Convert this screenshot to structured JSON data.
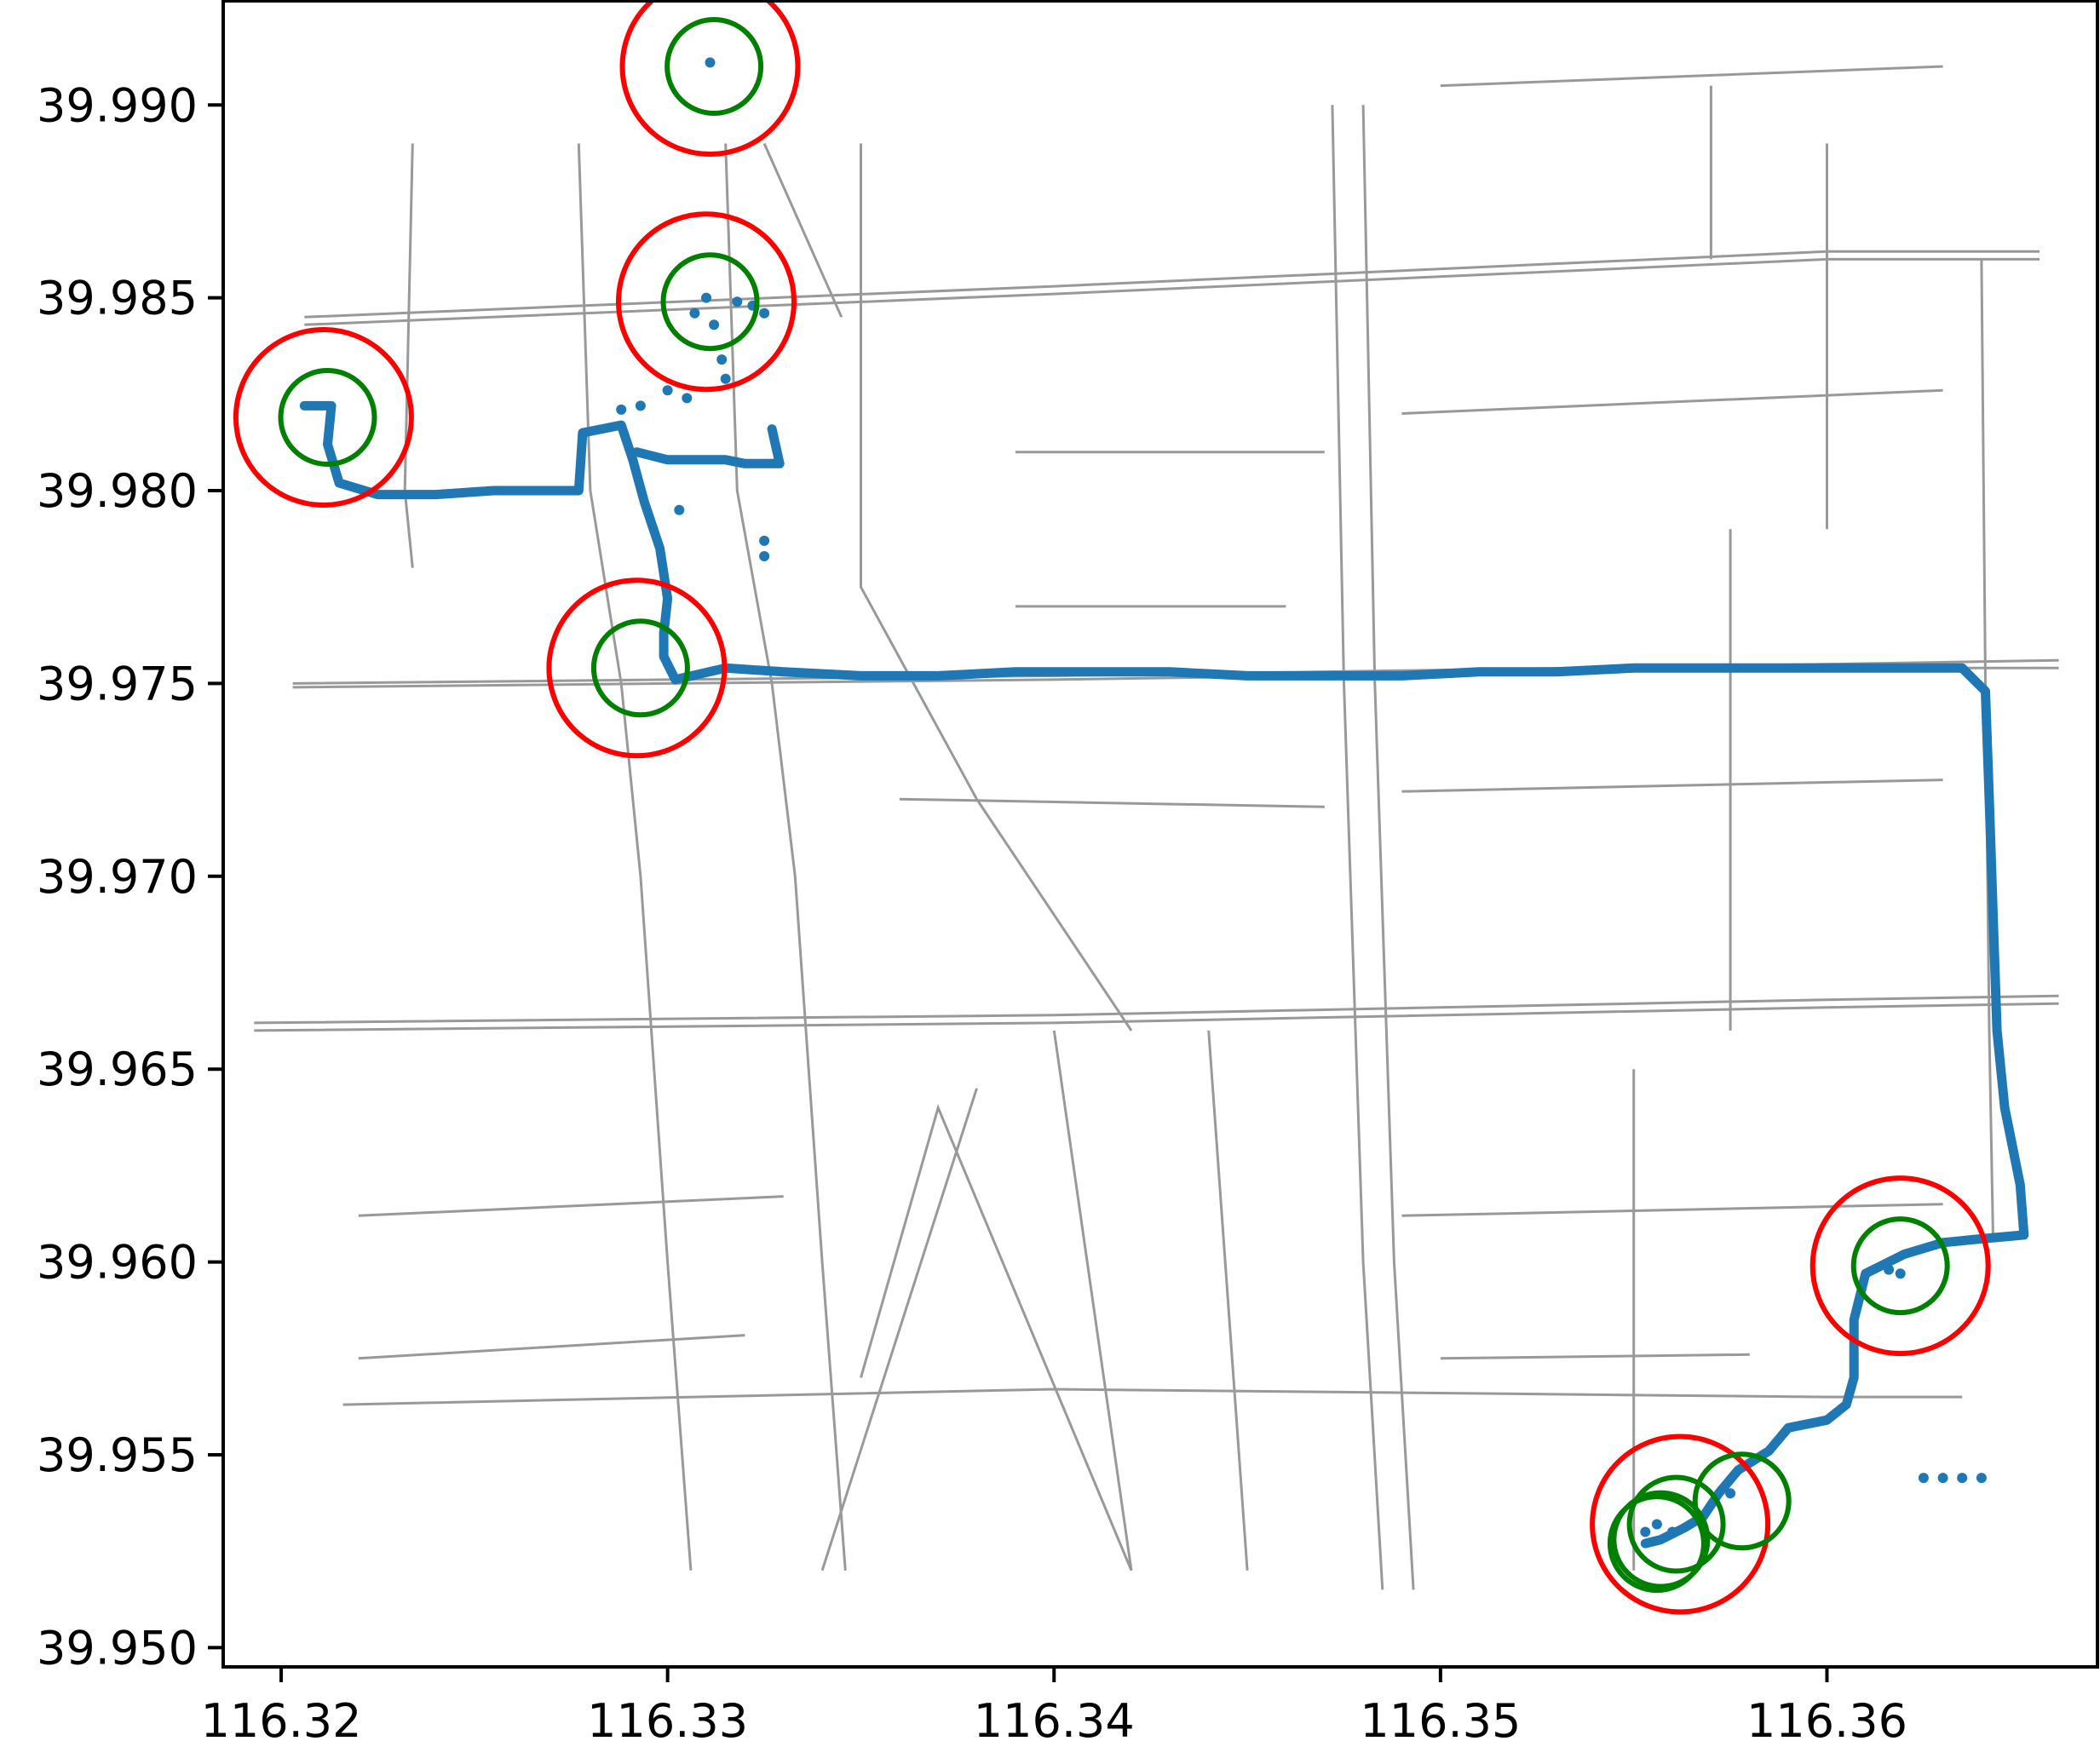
{
  "chart_data": {
    "type": "scatter",
    "xlim": [
      116.3185,
      116.367
    ],
    "ylim": [
      39.9495,
      39.9927
    ],
    "grid": false,
    "legend": "none",
    "x_ticks": [
      {
        "value": 116.32,
        "label": "116.32"
      },
      {
        "value": 116.33,
        "label": "116.33"
      },
      {
        "value": 116.34,
        "label": "116.34"
      },
      {
        "value": 116.35,
        "label": "116.35"
      },
      {
        "value": 116.36,
        "label": "116.36"
      }
    ],
    "y_ticks": [
      {
        "value": 39.99,
        "label": "39.990"
      },
      {
        "value": 39.985,
        "label": "39.985"
      },
      {
        "value": 39.98,
        "label": "39.980"
      },
      {
        "value": 39.975,
        "label": "39.975"
      },
      {
        "value": 39.97,
        "label": "39.970"
      },
      {
        "value": 39.965,
        "label": "39.965"
      },
      {
        "value": 39.96,
        "label": "39.960"
      },
      {
        "value": 39.955,
        "label": "39.955"
      },
      {
        "value": 39.95,
        "label": "39.950"
      }
    ],
    "colors": {
      "road_network": "#999999",
      "gps_trajectory": "#1f77b4",
      "outer_circles": "#ff0000",
      "inner_circles": "#008000"
    },
    "gps_trajectory": [
      [
        116.3206,
        39.9822
      ],
      [
        116.3213,
        39.9822
      ],
      [
        116.3212,
        39.9812
      ],
      [
        116.3215,
        39.9802
      ],
      [
        116.3225,
        39.9799
      ],
      [
        116.324,
        39.9799
      ],
      [
        116.3255,
        39.98
      ],
      [
        116.3272,
        39.98
      ],
      [
        116.3277,
        39.98
      ],
      [
        116.3278,
        39.9815
      ],
      [
        116.3288,
        39.9817
      ],
      [
        116.3291,
        39.9808
      ],
      [
        116.3294,
        39.9797
      ],
      [
        116.3298,
        39.9785
      ],
      [
        116.33,
        39.9772
      ],
      [
        116.3299,
        39.9763
      ],
      [
        116.3299,
        39.9757
      ],
      [
        116.3302,
        39.9751
      ],
      [
        116.3315,
        39.9754
      ],
      [
        116.333,
        39.9753
      ],
      [
        116.335,
        39.9752
      ],
      [
        116.337,
        39.9752
      ],
      [
        116.339,
        39.9753
      ],
      [
        116.341,
        39.9753
      ],
      [
        116.343,
        39.9753
      ],
      [
        116.345,
        39.9752
      ],
      [
        116.347,
        39.9752
      ],
      [
        116.349,
        39.9752
      ],
      [
        116.351,
        39.9753
      ],
      [
        116.353,
        39.9753
      ],
      [
        116.355,
        39.9754
      ],
      [
        116.357,
        39.9754
      ],
      [
        116.359,
        39.9754
      ],
      [
        116.361,
        39.9754
      ],
      [
        116.3635,
        39.9754
      ],
      [
        116.3641,
        39.9748
      ],
      [
        116.3642,
        39.972
      ],
      [
        116.3643,
        39.969
      ],
      [
        116.3644,
        39.966
      ],
      [
        116.3646,
        39.964
      ],
      [
        116.365,
        39.962
      ],
      [
        116.3651,
        39.9607
      ],
      [
        116.364,
        39.9606
      ],
      [
        116.363,
        39.9605
      ],
      [
        116.362,
        39.9602
      ],
      [
        116.361,
        39.9597
      ],
      [
        116.3607,
        39.9585
      ],
      [
        116.3607,
        39.957
      ],
      [
        116.3605,
        39.9563
      ],
      [
        116.36,
        39.9559
      ],
      [
        116.359,
        39.9557
      ],
      [
        116.3585,
        39.9551
      ],
      [
        116.3577,
        39.9546
      ],
      [
        116.3572,
        39.954
      ],
      [
        116.3568,
        39.9534
      ],
      [
        116.3563,
        39.9531
      ],
      [
        116.3557,
        39.9528
      ],
      [
        116.3553,
        39.9527
      ]
    ],
    "gps_segment_upper": [
      [
        116.3292,
        39.981
      ],
      [
        116.33,
        39.9808
      ],
      [
        116.3315,
        39.9808
      ],
      [
        116.332,
        39.9807
      ],
      [
        116.3329,
        39.9807
      ],
      [
        116.3327,
        39.9816
      ]
    ],
    "gps_scattered_points": [
      [
        116.3311,
        39.9911
      ],
      [
        116.3307,
        39.9846
      ],
      [
        116.331,
        39.985
      ],
      [
        116.3318,
        39.9849
      ],
      [
        116.3322,
        39.9848
      ],
      [
        116.3325,
        39.9846
      ],
      [
        116.3312,
        39.9843
      ],
      [
        116.3314,
        39.9834
      ],
      [
        116.3315,
        39.9829
      ],
      [
        116.3305,
        39.9824
      ],
      [
        116.33,
        39.9826
      ],
      [
        116.3293,
        39.9822
      ],
      [
        116.3288,
        39.9821
      ],
      [
        116.3303,
        39.9795
      ],
      [
        116.3325,
        39.9787
      ],
      [
        116.3325,
        39.9783
      ],
      [
        116.3625,
        39.9544
      ],
      [
        116.363,
        39.9544
      ],
      [
        116.3635,
        39.9544
      ],
      [
        116.364,
        39.9544
      ],
      [
        116.3616,
        39.9598
      ],
      [
        116.3619,
        39.9597
      ],
      [
        116.3553,
        39.953
      ],
      [
        116.3556,
        39.9532
      ],
      [
        116.356,
        39.953
      ],
      [
        116.3575,
        39.954
      ]
    ],
    "red_circles": [
      {
        "center": [
          116.3211,
          39.9819
        ]
      },
      {
        "center": [
          116.3311,
          39.991
        ]
      },
      {
        "center": [
          116.331,
          39.9849
        ]
      },
      {
        "center": [
          116.3292,
          39.9754
        ]
      },
      {
        "center": [
          116.3619,
          39.9599
        ]
      },
      {
        "center": [
          116.3562,
          39.9532
        ]
      }
    ],
    "green_circles": [
      {
        "center": [
          116.3212,
          39.9819
        ]
      },
      {
        "center": [
          116.3312,
          39.991
        ]
      },
      {
        "center": [
          116.3311,
          39.9849
        ]
      },
      {
        "center": [
          116.3293,
          39.9754
        ]
      },
      {
        "center": [
          116.3619,
          39.9599
        ]
      },
      {
        "center": [
          116.3578,
          39.9538
        ]
      },
      {
        "center": [
          116.3561,
          39.9532
        ]
      },
      {
        "center": [
          116.3557,
          39.9528
        ]
      },
      {
        "center": [
          116.3556,
          39.9527
        ]
      }
    ],
    "road_network": [
      [
        [
          116.3203,
          39.975
        ],
        [
          116.34,
          39.9752
        ],
        [
          116.36,
          39.9755
        ],
        [
          116.366,
          39.9756
        ]
      ],
      [
        [
          116.3203,
          39.9749
        ],
        [
          116.34,
          39.9751
        ],
        [
          116.36,
          39.9754
        ],
        [
          116.366,
          39.9754
        ]
      ],
      [
        [
          116.3193,
          39.966
        ],
        [
          116.34,
          39.9662
        ],
        [
          116.36,
          39.9666
        ],
        [
          116.366,
          39.9667
        ]
      ],
      [
        [
          116.3193,
          39.9662
        ],
        [
          116.34,
          39.9664
        ],
        [
          116.36,
          39.9668
        ],
        [
          116.366,
          39.9669
        ]
      ],
      [
        [
          116.3206,
          39.9843
        ],
        [
          116.34,
          39.9851
        ],
        [
          116.36,
          39.986
        ],
        [
          116.3655,
          39.986
        ]
      ],
      [
        [
          116.3206,
          39.9845
        ],
        [
          116.34,
          39.9853
        ],
        [
          116.36,
          39.9862
        ],
        [
          116.3655,
          39.9862
        ]
      ],
      [
        [
          116.3216,
          39.9563
        ],
        [
          116.34,
          39.9567
        ],
        [
          116.36,
          39.9565
        ],
        [
          116.3635,
          39.9565
        ]
      ],
      [
        [
          116.3277,
          39.989
        ],
        [
          116.328,
          39.98
        ],
        [
          116.3288,
          39.975
        ],
        [
          116.3293,
          39.97
        ],
        [
          116.33,
          39.96
        ],
        [
          116.3306,
          39.952
        ]
      ],
      [
        [
          116.3315,
          39.989
        ],
        [
          116.3318,
          39.98
        ],
        [
          116.3327,
          39.975
        ],
        [
          116.3333,
          39.97
        ],
        [
          116.334,
          39.96
        ],
        [
          116.3346,
          39.952
        ]
      ],
      [
        [
          116.3472,
          39.99
        ],
        [
          116.3475,
          39.975
        ],
        [
          116.348,
          39.96
        ],
        [
          116.3485,
          39.9515
        ]
      ],
      [
        [
          116.348,
          39.99
        ],
        [
          116.3483,
          39.975
        ],
        [
          116.3488,
          39.96
        ],
        [
          116.3493,
          39.9515
        ]
      ],
      [
        [
          116.364,
          39.986
        ],
        [
          116.3641,
          39.975
        ],
        [
          116.3642,
          39.966
        ],
        [
          116.3643,
          39.9606
        ]
      ],
      [
        [
          116.36,
          39.989
        ],
        [
          116.36,
          39.979
        ]
      ],
      [
        [
          116.3234,
          39.989
        ],
        [
          116.3232,
          39.98
        ],
        [
          116.3234,
          39.978
        ]
      ],
      [
        [
          116.3325,
          39.989
        ],
        [
          116.3345,
          39.9845
        ]
      ],
      [
        [
          116.335,
          39.989
        ],
        [
          116.335,
          39.9775
        ],
        [
          116.338,
          39.972
        ],
        [
          116.342,
          39.966
        ]
      ],
      [
        [
          116.335,
          39.957
        ],
        [
          116.337,
          39.964
        ],
        [
          116.342,
          39.952
        ]
      ],
      [
        [
          116.339,
          39.981
        ],
        [
          116.347,
          39.981
        ]
      ],
      [
        [
          116.349,
          39.982
        ],
        [
          116.363,
          39.9826
        ]
      ],
      [
        [
          116.349,
          39.9722
        ],
        [
          116.363,
          39.9725
        ]
      ],
      [
        [
          116.349,
          39.9612
        ],
        [
          116.363,
          39.9615
        ]
      ],
      [
        [
          116.336,
          39.972
        ],
        [
          116.347,
          39.9718
        ]
      ],
      [
        [
          116.322,
          39.9612
        ],
        [
          116.333,
          39.9617
        ]
      ],
      [
        [
          116.322,
          39.9575
        ],
        [
          116.332,
          39.9581
        ]
      ],
      [
        [
          116.35,
          39.9575
        ],
        [
          116.358,
          39.9576
        ]
      ],
      [
        [
          116.355,
          39.965
        ],
        [
          116.355,
          39.952
        ]
      ],
      [
        [
          116.34,
          39.966
        ],
        [
          116.342,
          39.952
        ]
      ],
      [
        [
          116.344,
          39.966
        ],
        [
          116.345,
          39.952
        ]
      ],
      [
        [
          116.338,
          39.9645
        ],
        [
          116.334,
          39.952
        ]
      ],
      [
        [
          116.339,
          39.977
        ],
        [
          116.346,
          39.977
        ]
      ],
      [
        [
          116.3575,
          39.979
        ],
        [
          116.3575,
          39.966
        ]
      ],
      [
        [
          116.357,
          39.986
        ],
        [
          116.357,
          39.9905
        ]
      ],
      [
        [
          116.35,
          39.9905
        ],
        [
          116.363,
          39.991
        ]
      ]
    ]
  }
}
